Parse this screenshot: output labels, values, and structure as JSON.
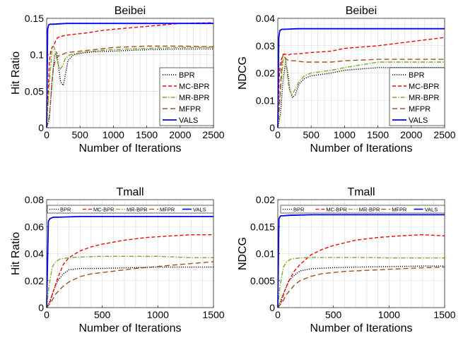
{
  "series_styles": [
    {
      "name": "BPR",
      "color": "#000000",
      "dash": "1.2,1.8"
    },
    {
      "name": "MC-BPR",
      "color": "#ff0000",
      "dash": "5,3"
    },
    {
      "name": "MR-BPR",
      "color": "#77ac30",
      "dash": "6,2,1.5,2"
    },
    {
      "name": "MFPR",
      "color": "#a2501f",
      "dash": "7,4"
    },
    {
      "name": "VALS",
      "color": "#0000ff",
      "dash": ""
    }
  ],
  "chart_data": [
    {
      "type": "line",
      "title": "Beibei",
      "xlabel": "Number of Iterations",
      "ylabel": "Hit Ratio",
      "xlim": [
        0,
        2500
      ],
      "ylim": [
        0,
        0.15
      ],
      "xticks": [
        0,
        500,
        1000,
        1500,
        2000,
        2500
      ],
      "yticks": [
        0,
        0.05,
        0.1,
        0.15
      ],
      "yticklabels": [
        "0",
        "0.05",
        "0.1",
        "0.15"
      ],
      "grid": true,
      "legend": "bottom-right",
      "series": [
        {
          "name": "BPR",
          "x": [
            0,
            40,
            80,
            120,
            150,
            180,
            210,
            250,
            280,
            320,
            400,
            500,
            700,
            1000,
            1500,
            2000,
            2500
          ],
          "y": [
            0,
            0.012,
            0.065,
            0.1,
            0.104,
            0.082,
            0.063,
            0.058,
            0.072,
            0.092,
            0.1,
            0.102,
            0.104,
            0.105,
            0.107,
            0.108,
            0.108
          ]
        },
        {
          "name": "MC-BPR",
          "x": [
            0,
            20,
            40,
            60,
            80,
            100,
            130,
            160,
            200,
            300,
            400,
            600,
            800,
            1000,
            1500,
            2000,
            2500
          ],
          "y": [
            0,
            0.04,
            0.09,
            0.105,
            0.11,
            0.112,
            0.118,
            0.123,
            0.125,
            0.127,
            0.128,
            0.13,
            0.133,
            0.135,
            0.139,
            0.143,
            0.144
          ]
        },
        {
          "name": "MR-BPR",
          "x": [
            0,
            40,
            80,
            110,
            130,
            160,
            200,
            240,
            280,
            350,
            450,
            600,
            800,
            1000,
            1500,
            2000,
            2500
          ],
          "y": [
            0,
            0.06,
            0.108,
            0.111,
            0.105,
            0.09,
            0.08,
            0.085,
            0.095,
            0.1,
            0.102,
            0.104,
            0.106,
            0.107,
            0.109,
            0.11,
            0.11
          ]
        },
        {
          "name": "MFPR",
          "x": [
            0,
            40,
            80,
            100,
            130,
            170,
            220,
            300,
            400,
            600,
            800,
            1000,
            1500,
            2000,
            2500
          ],
          "y": [
            0,
            0.015,
            0.06,
            0.082,
            0.092,
            0.098,
            0.1,
            0.103,
            0.104,
            0.106,
            0.108,
            0.11,
            0.112,
            0.112,
            0.111
          ]
        },
        {
          "name": "VALS",
          "x": [
            0,
            15,
            30,
            50,
            100,
            300,
            600,
            1000,
            1500,
            2000,
            2500
          ],
          "y": [
            0,
            0.135,
            0.141,
            0.142,
            0.142,
            0.143,
            0.143,
            0.143,
            0.143,
            0.143,
            0.143
          ]
        }
      ]
    },
    {
      "type": "line",
      "title": "Beibei",
      "xlabel": "Number of Iterations",
      "ylabel": "NDCG",
      "xlim": [
        0,
        2500
      ],
      "ylim": [
        0,
        0.04
      ],
      "xticks": [
        0,
        500,
        1000,
        1500,
        2000,
        2500
      ],
      "yticks": [
        0,
        0.01,
        0.02,
        0.03,
        0.04
      ],
      "yticklabels": [
        "0",
        "0.01",
        "0.02",
        "0.03",
        "0.04"
      ],
      "grid": true,
      "legend": "bottom-right",
      "series": [
        {
          "name": "BPR",
          "x": [
            0,
            40,
            80,
            120,
            150,
            180,
            220,
            260,
            320,
            400,
            500,
            800,
            1000,
            1500,
            2000,
            2500
          ],
          "y": [
            0,
            0.005,
            0.018,
            0.024,
            0.02,
            0.014,
            0.011,
            0.012,
            0.016,
            0.018,
            0.019,
            0.02,
            0.021,
            0.022,
            0.022,
            0.022
          ]
        },
        {
          "name": "MC-BPR",
          "x": [
            0,
            20,
            40,
            70,
            100,
            150,
            200,
            300,
            500,
            800,
            1000,
            1500,
            2000,
            2500
          ],
          "y": [
            0,
            0.018,
            0.024,
            0.026,
            0.027,
            0.0265,
            0.027,
            0.027,
            0.0275,
            0.028,
            0.029,
            0.03,
            0.0315,
            0.033
          ]
        },
        {
          "name": "MR-BPR",
          "x": [
            0,
            40,
            80,
            110,
            140,
            170,
            210,
            260,
            320,
            400,
            500,
            800,
            1000,
            1500,
            2000,
            2500
          ],
          "y": [
            0,
            0.014,
            0.025,
            0.026,
            0.02,
            0.014,
            0.012,
            0.014,
            0.017,
            0.019,
            0.02,
            0.021,
            0.022,
            0.024,
            0.024,
            0.024
          ]
        },
        {
          "name": "MFPR",
          "x": [
            0,
            30,
            60,
            80,
            100,
            130,
            170,
            250,
            400,
            600,
            800,
            1000,
            1500,
            2000,
            2500
          ],
          "y": [
            0,
            0.01,
            0.024,
            0.027,
            0.026,
            0.025,
            0.0245,
            0.0245,
            0.024,
            0.024,
            0.024,
            0.0245,
            0.025,
            0.025,
            0.025
          ]
        },
        {
          "name": "VALS",
          "x": [
            0,
            15,
            30,
            60,
            100,
            300,
            800,
            1500,
            2000,
            2500
          ],
          "y": [
            0,
            0.033,
            0.0355,
            0.036,
            0.036,
            0.0362,
            0.0362,
            0.0362,
            0.0362,
            0.0362
          ]
        }
      ]
    },
    {
      "type": "line",
      "title": "Tmall",
      "xlabel": "Number of Iterations",
      "ylabel": "Hit Ratio",
      "xlim": [
        0,
        1500
      ],
      "ylim": [
        0,
        0.08
      ],
      "xticks": [
        0,
        500,
        1000,
        1500
      ],
      "yticks": [
        0,
        0.02,
        0.04,
        0.06,
        0.08
      ],
      "yticklabels": [
        "0",
        "0.02",
        "0.04",
        "0.06",
        "0.08"
      ],
      "grid": true,
      "legend": "top",
      "series": [
        {
          "name": "BPR",
          "x": [
            0,
            30,
            60,
            100,
            150,
            200,
            300,
            500,
            700,
            1000,
            1300,
            1500
          ],
          "y": [
            0,
            0.005,
            0.012,
            0.02,
            0.025,
            0.028,
            0.029,
            0.029,
            0.0295,
            0.03,
            0.03,
            0.03
          ]
        },
        {
          "name": "MC-BPR",
          "x": [
            0,
            30,
            60,
            100,
            150,
            200,
            300,
            400,
            500,
            700,
            900,
            1100,
            1300,
            1500
          ],
          "y": [
            0,
            0.004,
            0.012,
            0.022,
            0.032,
            0.037,
            0.042,
            0.045,
            0.047,
            0.05,
            0.052,
            0.053,
            0.054,
            0.054
          ]
        },
        {
          "name": "MR-BPR",
          "x": [
            0,
            20,
            50,
            80,
            120,
            200,
            300,
            500,
            800,
            1000,
            1300,
            1500
          ],
          "y": [
            0,
            0.015,
            0.03,
            0.034,
            0.036,
            0.037,
            0.0375,
            0.038,
            0.038,
            0.038,
            0.037,
            0.037
          ]
        },
        {
          "name": "MFPR",
          "x": [
            0,
            40,
            80,
            150,
            200,
            300,
            400,
            600,
            800,
            1000,
            1200,
            1500
          ],
          "y": [
            0,
            0.004,
            0.01,
            0.016,
            0.019,
            0.023,
            0.025,
            0.027,
            0.029,
            0.0305,
            0.032,
            0.034
          ]
        },
        {
          "name": "VALS",
          "x": [
            0,
            15,
            30,
            60,
            100,
            300,
            600,
            1000,
            1500
          ],
          "y": [
            0,
            0.064,
            0.066,
            0.067,
            0.067,
            0.0675,
            0.0675,
            0.0675,
            0.0675
          ]
        }
      ]
    },
    {
      "type": "line",
      "title": "Tmall",
      "xlabel": "Number of Iterations",
      "ylabel": "NDCG",
      "xlim": [
        0,
        1500
      ],
      "ylim": [
        0,
        0.02
      ],
      "xticks": [
        0,
        500,
        1000,
        1500
      ],
      "yticks": [
        0,
        0.005,
        0.01,
        0.015,
        0.02
      ],
      "yticklabels": [
        "0",
        "0.005",
        "0.01",
        "0.015",
        "0.02"
      ],
      "grid": true,
      "legend": "top",
      "series": [
        {
          "name": "BPR",
          "x": [
            0,
            30,
            60,
            100,
            150,
            200,
            300,
            500,
            700,
            1000,
            1300,
            1500
          ],
          "y": [
            0,
            0.0015,
            0.003,
            0.005,
            0.006,
            0.0068,
            0.0072,
            0.0074,
            0.0075,
            0.0076,
            0.0077,
            0.0077
          ]
        },
        {
          "name": "MC-BPR",
          "x": [
            0,
            30,
            60,
            100,
            150,
            200,
            300,
            400,
            500,
            700,
            900,
            1100,
            1300,
            1500
          ],
          "y": [
            0,
            0.001,
            0.003,
            0.005,
            0.0068,
            0.008,
            0.0098,
            0.0108,
            0.0115,
            0.0125,
            0.013,
            0.0133,
            0.0135,
            0.0133
          ]
        },
        {
          "name": "MR-BPR",
          "x": [
            0,
            20,
            50,
            80,
            120,
            200,
            300,
            500,
            800,
            1000,
            1300,
            1500
          ],
          "y": [
            0,
            0.004,
            0.0075,
            0.0085,
            0.009,
            0.0092,
            0.0093,
            0.0093,
            0.0093,
            0.0092,
            0.0092,
            0.0092
          ]
        },
        {
          "name": "MFPR",
          "x": [
            0,
            40,
            80,
            150,
            200,
            300,
            400,
            600,
            800,
            1000,
            1200,
            1500
          ],
          "y": [
            0,
            0.001,
            0.0025,
            0.0042,
            0.005,
            0.0058,
            0.0063,
            0.0067,
            0.0069,
            0.0071,
            0.0073,
            0.0075
          ]
        },
        {
          "name": "VALS",
          "x": [
            0,
            10,
            25,
            50,
            100,
            300,
            600,
            1000,
            1500
          ],
          "y": [
            0,
            0.0165,
            0.017,
            0.017,
            0.0171,
            0.0172,
            0.0172,
            0.0172,
            0.0172
          ]
        }
      ]
    }
  ]
}
